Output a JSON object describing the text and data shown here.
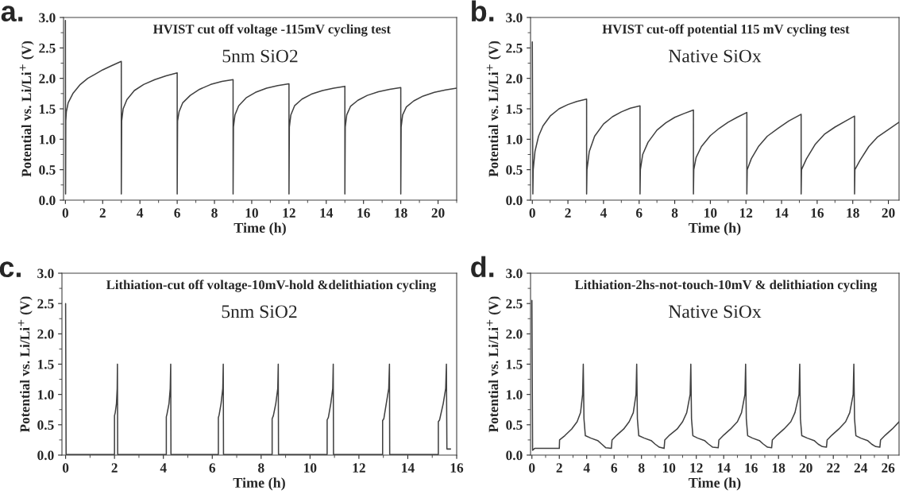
{
  "chart_data": [
    {
      "type": "line",
      "title": "HVIST cut off voltage -115mV cycling test",
      "subtitle": "5nm SiO2",
      "annotations": [
        "a."
      ],
      "xlabel": "Time (h)",
      "ylabel": "Potential vs. Li/Li$^{+}$ (V)",
      "xlim": [
        -0.1,
        21
      ],
      "ylim": [
        0,
        3
      ],
      "xticks": [
        0,
        2,
        4,
        6,
        8,
        10,
        12,
        14,
        16,
        18,
        20
      ],
      "yticks": [
        {
          "value": 0,
          "label": "0.0"
        },
        {
          "value": 0.5,
          "label": "0.5"
        },
        {
          "value": 1,
          "label": "1.0"
        },
        {
          "value": 1.5,
          "label": "1.5"
        },
        {
          "value": 2,
          "label": "2.0"
        },
        {
          "value": 2.5,
          "label": "2.5"
        },
        {
          "value": 3,
          "label": "3.0"
        }
      ],
      "grid": false,
      "legend": false,
      "marker": "none",
      "line_style": "solid",
      "series": [
        {
          "color": "#404040",
          "x": [
            0,
            0.01,
            0.02,
            0.05,
            0.15,
            0.4,
            0.8,
            1.2,
            1.6,
            2.0,
            2.5,
            3.0,
            3.0,
            3.02,
            3.1,
            3.3,
            3.7,
            4.2,
            4.8,
            5.4,
            6.0,
            6.0,
            6.02,
            6.1,
            6.3,
            6.7,
            7.2,
            7.8,
            8.4,
            9.0,
            9.0,
            9.02,
            9.1,
            9.3,
            9.7,
            10.2,
            10.8,
            11.4,
            12.0,
            12.0,
            12.02,
            12.1,
            12.3,
            12.7,
            13.2,
            13.8,
            14.4,
            15.0,
            15.0,
            15.02,
            15.1,
            15.3,
            15.7,
            16.2,
            16.8,
            17.4,
            18.0,
            18.0,
            18.02,
            18.1,
            18.3,
            18.7,
            19.2,
            19.8,
            20.4,
            21.0
          ],
          "values": [
            2.95,
            0.1,
            1.3,
            1.45,
            1.6,
            1.75,
            1.9,
            2.0,
            2.07,
            2.14,
            2.21,
            2.28,
            0.1,
            1.3,
            1.5,
            1.65,
            1.8,
            1.9,
            1.98,
            2.04,
            2.09,
            0.1,
            1.3,
            1.45,
            1.6,
            1.72,
            1.82,
            1.9,
            1.95,
            1.98,
            0.1,
            1.2,
            1.4,
            1.55,
            1.68,
            1.77,
            1.84,
            1.88,
            1.91,
            0.1,
            1.2,
            1.4,
            1.55,
            1.66,
            1.74,
            1.8,
            1.84,
            1.87,
            0.1,
            1.2,
            1.4,
            1.54,
            1.64,
            1.72,
            1.78,
            1.82,
            1.85,
            0.1,
            1.2,
            1.4,
            1.53,
            1.63,
            1.71,
            1.77,
            1.81,
            1.84
          ]
        }
      ]
    },
    {
      "type": "line",
      "title": "HVIST cut-off potential 115 mV cycling test",
      "subtitle": "Native SiOx",
      "annotations": [
        "b."
      ],
      "xlabel": "Time (h)",
      "ylabel": "Potential vs. Li/Li$^{+}$ (V)",
      "xlim": [
        -0.1,
        20.6
      ],
      "ylim": [
        0,
        3
      ],
      "xticks": [
        0,
        2,
        4,
        6,
        8,
        10,
        12,
        14,
        16,
        18,
        20
      ],
      "yticks": [
        {
          "value": 0,
          "label": "0.0"
        },
        {
          "value": 0.5,
          "label": "0.5"
        },
        {
          "value": 1,
          "label": "1.0"
        },
        {
          "value": 1.5,
          "label": "1.5"
        },
        {
          "value": 2,
          "label": "2.0"
        },
        {
          "value": 2.5,
          "label": "2.5"
        },
        {
          "value": 3,
          "label": "3.0"
        }
      ],
      "grid": false,
      "legend": false,
      "marker": "none",
      "line_style": "solid",
      "series": [
        {
          "color": "#404040",
          "x": [
            0,
            0.03,
            0.05,
            0.15,
            0.35,
            0.6,
            1.0,
            1.5,
            2.0,
            2.5,
            3.05,
            3.05,
            3.07,
            3.2,
            3.5,
            4.0,
            4.5,
            5.0,
            5.5,
            6.05,
            6.05,
            6.07,
            6.2,
            6.5,
            7.0,
            7.5,
            8.0,
            8.5,
            9.05,
            9.05,
            9.07,
            9.2,
            9.5,
            10.0,
            10.5,
            11.0,
            11.5,
            12.05,
            12.05,
            12.07,
            12.3,
            12.7,
            13.2,
            13.8,
            14.4,
            15.1,
            15.1,
            15.12,
            15.4,
            15.9,
            16.4,
            17.0,
            17.6,
            18.1,
            18.1,
            18.12,
            18.4,
            18.9,
            19.4,
            20.0,
            20.6
          ],
          "values": [
            2.6,
            0.1,
            0.5,
            0.8,
            1.05,
            1.22,
            1.38,
            1.5,
            1.57,
            1.62,
            1.66,
            0.1,
            0.5,
            0.8,
            1.05,
            1.25,
            1.37,
            1.45,
            1.51,
            1.55,
            0.1,
            0.5,
            0.75,
            0.95,
            1.15,
            1.27,
            1.36,
            1.42,
            1.48,
            0.1,
            0.5,
            0.7,
            0.88,
            1.06,
            1.18,
            1.28,
            1.36,
            1.44,
            0.1,
            0.5,
            0.68,
            0.88,
            1.05,
            1.18,
            1.3,
            1.41,
            0.1,
            0.5,
            0.68,
            0.92,
            1.08,
            1.2,
            1.3,
            1.38,
            0.1,
            0.5,
            0.65,
            0.88,
            1.04,
            1.16,
            1.28
          ]
        }
      ]
    },
    {
      "type": "line",
      "title": "Lithiation-cut off voltage-10mV-hold &delithiation cycling",
      "subtitle": "5nm SiO2",
      "annotations": [
        "c."
      ],
      "xlabel": "Time (h)",
      "ylabel": "Potential vs. Li/Li$^{+}$ (V)",
      "xlim": [
        -0.15,
        16
      ],
      "ylim": [
        0,
        3
      ],
      "xticks": [
        0,
        2,
        4,
        6,
        8,
        10,
        12,
        14,
        16
      ],
      "yticks": [
        {
          "value": 0,
          "label": "0.0"
        },
        {
          "value": 0.5,
          "label": "0.5"
        },
        {
          "value": 1,
          "label": "1.0"
        },
        {
          "value": 1.5,
          "label": "1.5"
        },
        {
          "value": 2,
          "label": "2.0"
        },
        {
          "value": 2.5,
          "label": "2.5"
        },
        {
          "value": 3,
          "label": "3.0"
        }
      ],
      "grid": false,
      "legend": false,
      "marker": "none",
      "line_style": "solid",
      "series": [
        {
          "color": "#404040",
          "x": [
            0,
            0.02,
            2.0,
            2.0,
            2.03,
            2.08,
            2.11,
            2.12,
            2.13,
            4.12,
            4.12,
            4.15,
            4.23,
            4.28,
            4.3,
            4.31,
            6.25,
            6.25,
            6.28,
            6.36,
            6.43,
            6.45,
            6.46,
            8.45,
            8.45,
            8.5,
            8.6,
            8.68,
            8.7,
            8.71,
            10.7,
            10.7,
            10.75,
            10.85,
            10.93,
            10.95,
            10.96,
            12.97,
            12.97,
            13.02,
            13.12,
            13.22,
            13.25,
            13.26,
            15.25,
            15.25,
            15.3,
            15.45,
            15.55,
            15.58,
            15.6,
            15.75
          ],
          "values": [
            2.5,
            0.01,
            0.01,
            0.65,
            0.7,
            0.85,
            1.1,
            1.5,
            0.01,
            0.01,
            0.63,
            0.68,
            0.85,
            1.1,
            1.5,
            0.01,
            0.01,
            0.62,
            0.66,
            0.85,
            1.1,
            1.5,
            0.01,
            0.01,
            0.6,
            0.65,
            0.85,
            1.1,
            1.5,
            0.01,
            0.01,
            0.58,
            0.62,
            0.85,
            1.1,
            1.5,
            0.01,
            0.01,
            0.57,
            0.6,
            0.85,
            1.1,
            1.5,
            0.01,
            0.01,
            0.55,
            0.58,
            0.85,
            1.1,
            1.5,
            0.1,
            0.1
          ]
        }
      ]
    },
    {
      "type": "line",
      "title": "Lithiation-2hs-not-touch-10mV & delithiation cycling",
      "subtitle": "Native SiOx",
      "annotations": [
        "d."
      ],
      "xlabel": "Time (h)",
      "ylabel": "Potential vs. Li/Li$^{+}$ (V)",
      "xlim": [
        -0.1,
        26.8
      ],
      "ylim": [
        0,
        3
      ],
      "xticks": [
        0,
        2,
        4,
        6,
        8,
        10,
        12,
        14,
        16,
        18,
        20,
        22,
        24,
        26
      ],
      "yticks": [
        {
          "value": 0,
          "label": "0.0"
        },
        {
          "value": 0.5,
          "label": "0.5"
        },
        {
          "value": 1,
          "label": "1.0"
        },
        {
          "value": 1.5,
          "label": "1.5"
        },
        {
          "value": 2,
          "label": "2.0"
        },
        {
          "value": 2.5,
          "label": "2.5"
        },
        {
          "value": 3,
          "label": "3.0"
        }
      ],
      "grid": false,
      "legend": false,
      "marker": "none",
      "line_style": "solid",
      "series": [
        {
          "color": "#404040",
          "x": [
            0,
            0.05,
            0.2,
            2.0,
            2.02,
            2.4,
            2.9,
            3.3,
            3.55,
            3.7,
            3.75,
            3.8,
            3.9,
            4.3,
            4.8,
            5.1,
            5.4,
            5.8,
            5.85,
            6.2,
            6.7,
            7.1,
            7.4,
            7.6,
            7.65,
            7.7,
            7.8,
            8.2,
            8.7,
            9.0,
            9.3,
            9.65,
            9.7,
            10.05,
            10.6,
            11.0,
            11.3,
            11.55,
            11.6,
            11.65,
            11.75,
            12.1,
            12.6,
            12.9,
            13.2,
            13.6,
            13.65,
            14.0,
            14.5,
            15.0,
            15.3,
            15.55,
            15.6,
            15.65,
            15.75,
            16.1,
            16.6,
            16.9,
            17.2,
            17.5,
            17.55,
            17.9,
            18.4,
            18.9,
            19.2,
            19.5,
            19.55,
            19.6,
            19.7,
            20.1,
            20.6,
            20.9,
            21.2,
            21.5,
            21.55,
            21.9,
            22.4,
            22.9,
            23.2,
            23.45,
            23.5,
            23.55,
            23.65,
            24.0,
            24.5,
            24.8,
            25.1,
            25.4,
            25.45,
            25.8,
            26.3,
            26.8
          ],
          "values": [
            2.55,
            0.08,
            0.11,
            0.11,
            0.25,
            0.32,
            0.43,
            0.55,
            0.7,
            1.0,
            1.5,
            0.6,
            0.32,
            0.28,
            0.24,
            0.18,
            0.12,
            0.11,
            0.25,
            0.33,
            0.43,
            0.55,
            0.7,
            1.0,
            1.5,
            0.6,
            0.32,
            0.28,
            0.24,
            0.18,
            0.13,
            0.11,
            0.25,
            0.33,
            0.43,
            0.55,
            0.7,
            1.0,
            1.5,
            0.6,
            0.32,
            0.28,
            0.24,
            0.18,
            0.13,
            0.12,
            0.25,
            0.33,
            0.43,
            0.55,
            0.7,
            1.0,
            1.5,
            0.6,
            0.32,
            0.28,
            0.24,
            0.18,
            0.13,
            0.12,
            0.25,
            0.33,
            0.43,
            0.55,
            0.7,
            1.0,
            1.5,
            0.6,
            0.32,
            0.28,
            0.24,
            0.18,
            0.14,
            0.13,
            0.25,
            0.33,
            0.43,
            0.55,
            0.7,
            1.0,
            1.5,
            0.6,
            0.32,
            0.28,
            0.24,
            0.18,
            0.14,
            0.13,
            0.25,
            0.33,
            0.43,
            0.55
          ]
        }
      ]
    }
  ]
}
